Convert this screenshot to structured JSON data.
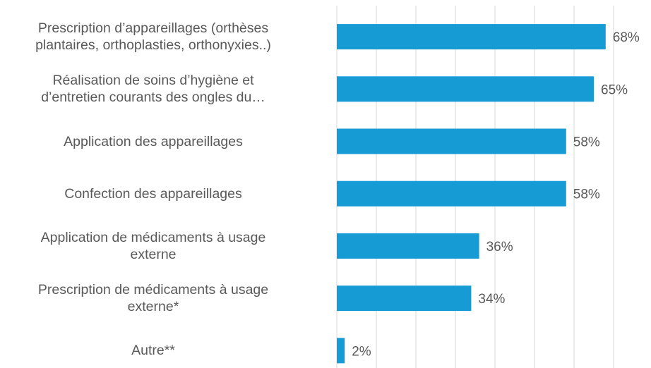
{
  "chart_data": {
    "type": "bar",
    "orientation": "horizontal",
    "categories": [
      "Prescription d’appareillages (orthèses\nplantaires, orthoplasties, orthonyxies..)",
      "Réalisation de soins d’hygiène et\nd’entretien courants des ongles du…",
      "Application des appareillages",
      "Confection des appareillages",
      "Application de médicaments à usage\nexterne",
      "Prescription de médicaments à usage\nexterne*",
      "Autre**"
    ],
    "values": [
      68,
      65,
      58,
      58,
      36,
      34,
      2
    ],
    "value_labels": [
      "68%",
      "65%",
      "58%",
      "58%",
      "36%",
      "34%",
      "2%"
    ],
    "color": "#169bd5",
    "xlim": [
      0,
      70
    ],
    "xticks": [
      0,
      10,
      20,
      30,
      40,
      50,
      60,
      70
    ],
    "grid": true
  }
}
